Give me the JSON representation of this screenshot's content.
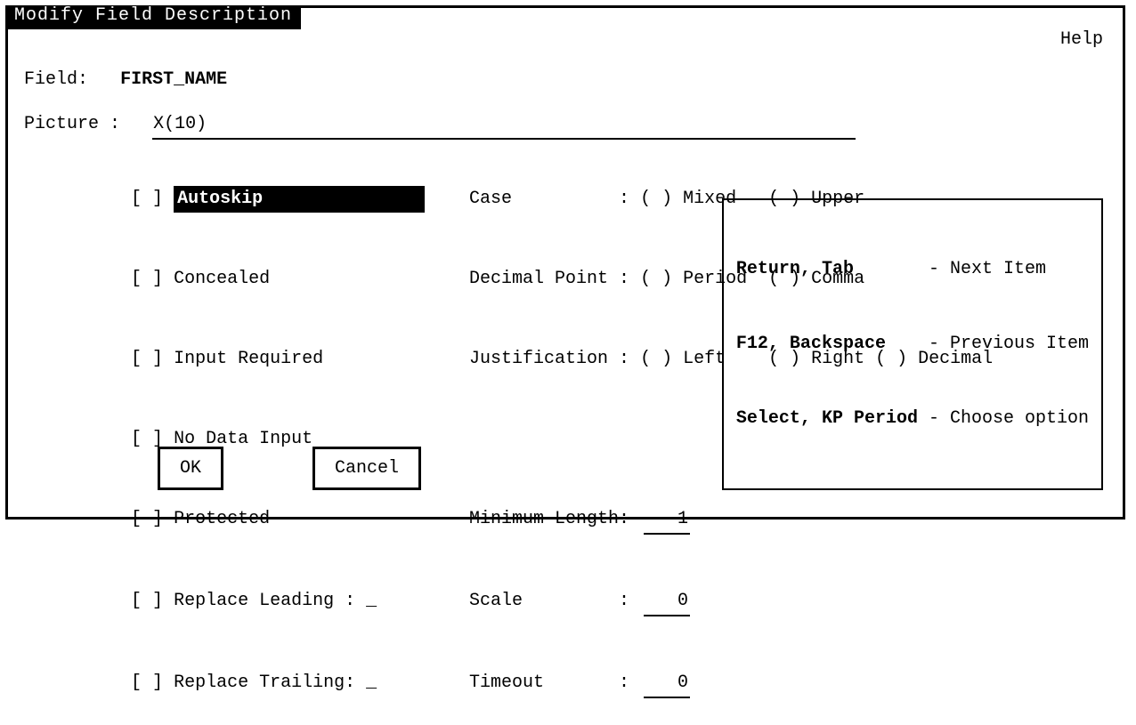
{
  "window": {
    "title": "Modify Field Description",
    "help_label": "Help"
  },
  "field": {
    "label": "Field:",
    "name": "FIRST_NAME"
  },
  "picture": {
    "label": "Picture :",
    "value": "X(10)"
  },
  "checkboxes": {
    "bracket_open": "[ ]",
    "autoskip": "Autoskip",
    "concealed": "Concealed",
    "input_required": "Input Required",
    "no_data_input": "No Data Input",
    "protected": "Protected",
    "replace_leading_label": "Replace Leading : ",
    "replace_leading_value": "_",
    "replace_trailing_label": "Replace Trailing: ",
    "replace_trailing_value": "_"
  },
  "radios": {
    "case_label": "Case          : ",
    "case_opts": "( ) Mixed   ( ) Upper",
    "decimal_label": "Decimal Point : ",
    "decimal_opts": "( ) Period  ( ) Comma",
    "justification_label": "Justification : ",
    "justification_opts": "( ) Left    ( ) Right ( ) Decimal"
  },
  "numeric": {
    "minlen_label": "Minimum Length: ",
    "minlen_value": "1",
    "scale_label": "Scale         : ",
    "scale_value": "0",
    "timeout_label": "Timeout       : ",
    "timeout_value": "0"
  },
  "buttons": {
    "ok": "OK",
    "cancel": "Cancel"
  },
  "hints": {
    "r1_key": "Return, Tab      ",
    "r1_desc": " - Next Item",
    "r2_key": "F12, Backspace   ",
    "r2_desc": " - Previous Item",
    "r3_key": "Select, KP Period",
    "r3_desc": " - Choose option"
  }
}
